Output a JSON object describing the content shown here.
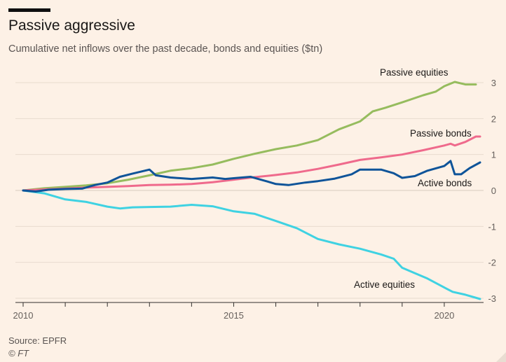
{
  "header": {
    "title": "Passive aggressive",
    "subtitle": "Cumulative net inflows over the past decade, bonds and equities ($tn)"
  },
  "footer": {
    "source": "Source: EPFR",
    "credit": "© FT"
  },
  "colors": {
    "background": "#fdf1e6",
    "grid": "#e8dbcf",
    "axis": "#33302e",
    "passive_equities": "#96bc5e",
    "passive_bonds": "#ef6a8c",
    "active_bonds": "#0f5499",
    "active_equities": "#3fd2e2"
  },
  "chart_data": {
    "type": "line",
    "title": "Passive aggressive",
    "subtitle": "Cumulative net inflows over the past decade, bonds and equities ($tn)",
    "xlabel": "",
    "ylabel": "",
    "xlim": [
      2010,
      2020.85
    ],
    "ylim": [
      -3,
      3
    ],
    "x_ticks": [
      "2010",
      "2015",
      "2020"
    ],
    "y_ticks": [
      "3",
      "2",
      "1",
      "0",
      "-1",
      "-2",
      "-3"
    ],
    "grid": true,
    "y_axis_side": "right",
    "legend": "direct labels",
    "series": [
      {
        "name": "Passive equities",
        "color_key": "passive_equities",
        "points": [
          [
            2010.0,
            0.0
          ],
          [
            2010.5,
            0.06
          ],
          [
            2011.0,
            0.1
          ],
          [
            2011.5,
            0.14
          ],
          [
            2012.0,
            0.2
          ],
          [
            2012.5,
            0.3
          ],
          [
            2013.0,
            0.42
          ],
          [
            2013.5,
            0.55
          ],
          [
            2014.0,
            0.62
          ],
          [
            2014.5,
            0.72
          ],
          [
            2015.0,
            0.88
          ],
          [
            2015.5,
            1.02
          ],
          [
            2016.0,
            1.15
          ],
          [
            2016.5,
            1.25
          ],
          [
            2017.0,
            1.4
          ],
          [
            2017.5,
            1.7
          ],
          [
            2018.0,
            1.92
          ],
          [
            2018.3,
            2.2
          ],
          [
            2018.6,
            2.3
          ],
          [
            2019.0,
            2.45
          ],
          [
            2019.5,
            2.65
          ],
          [
            2019.8,
            2.75
          ],
          [
            2020.0,
            2.9
          ],
          [
            2020.25,
            3.02
          ],
          [
            2020.5,
            2.95
          ],
          [
            2020.75,
            2.95
          ]
        ]
      },
      {
        "name": "Passive bonds",
        "color_key": "passive_bonds",
        "points": [
          [
            2010.0,
            0.0
          ],
          [
            2010.5,
            0.03
          ],
          [
            2011.0,
            0.05
          ],
          [
            2011.5,
            0.08
          ],
          [
            2012.0,
            0.1
          ],
          [
            2012.5,
            0.12
          ],
          [
            2013.0,
            0.15
          ],
          [
            2013.5,
            0.16
          ],
          [
            2014.0,
            0.18
          ],
          [
            2014.5,
            0.23
          ],
          [
            2015.0,
            0.3
          ],
          [
            2015.5,
            0.37
          ],
          [
            2016.0,
            0.43
          ],
          [
            2016.5,
            0.5
          ],
          [
            2017.0,
            0.6
          ],
          [
            2017.5,
            0.72
          ],
          [
            2018.0,
            0.85
          ],
          [
            2018.5,
            0.92
          ],
          [
            2019.0,
            1.0
          ],
          [
            2019.5,
            1.12
          ],
          [
            2020.0,
            1.25
          ],
          [
            2020.15,
            1.3
          ],
          [
            2020.25,
            1.25
          ],
          [
            2020.5,
            1.35
          ],
          [
            2020.75,
            1.5
          ],
          [
            2020.85,
            1.5
          ]
        ]
      },
      {
        "name": "Active bonds",
        "color_key": "active_bonds",
        "points": [
          [
            2010.0,
            0.0
          ],
          [
            2010.3,
            -0.03
          ],
          [
            2010.6,
            0.02
          ],
          [
            2011.0,
            0.04
          ],
          [
            2011.4,
            0.05
          ],
          [
            2011.7,
            0.15
          ],
          [
            2012.0,
            0.22
          ],
          [
            2012.3,
            0.38
          ],
          [
            2012.6,
            0.47
          ],
          [
            2013.0,
            0.58
          ],
          [
            2013.15,
            0.42
          ],
          [
            2013.5,
            0.36
          ],
          [
            2014.0,
            0.32
          ],
          [
            2014.5,
            0.36
          ],
          [
            2014.8,
            0.32
          ],
          [
            2015.0,
            0.34
          ],
          [
            2015.4,
            0.38
          ],
          [
            2015.8,
            0.25
          ],
          [
            2016.0,
            0.18
          ],
          [
            2016.3,
            0.15
          ],
          [
            2016.7,
            0.22
          ],
          [
            2017.0,
            0.26
          ],
          [
            2017.4,
            0.33
          ],
          [
            2017.8,
            0.45
          ],
          [
            2018.0,
            0.58
          ],
          [
            2018.5,
            0.58
          ],
          [
            2018.8,
            0.48
          ],
          [
            2019.0,
            0.35
          ],
          [
            2019.3,
            0.4
          ],
          [
            2019.6,
            0.55
          ],
          [
            2020.0,
            0.68
          ],
          [
            2020.15,
            0.82
          ],
          [
            2020.25,
            0.45
          ],
          [
            2020.4,
            0.45
          ],
          [
            2020.6,
            0.62
          ],
          [
            2020.85,
            0.78
          ]
        ]
      },
      {
        "name": "Active equities",
        "color_key": "active_equities",
        "points": [
          [
            2010.0,
            0.0
          ],
          [
            2010.5,
            -0.08
          ],
          [
            2011.0,
            -0.25
          ],
          [
            2011.5,
            -0.32
          ],
          [
            2012.0,
            -0.45
          ],
          [
            2012.3,
            -0.5
          ],
          [
            2012.6,
            -0.47
          ],
          [
            2013.0,
            -0.46
          ],
          [
            2013.5,
            -0.45
          ],
          [
            2014.0,
            -0.4
          ],
          [
            2014.5,
            -0.44
          ],
          [
            2015.0,
            -0.58
          ],
          [
            2015.5,
            -0.65
          ],
          [
            2016.0,
            -0.85
          ],
          [
            2016.5,
            -1.05
          ],
          [
            2017.0,
            -1.35
          ],
          [
            2017.5,
            -1.5
          ],
          [
            2018.0,
            -1.62
          ],
          [
            2018.5,
            -1.78
          ],
          [
            2018.8,
            -1.9
          ],
          [
            2019.0,
            -2.15
          ],
          [
            2019.3,
            -2.3
          ],
          [
            2019.6,
            -2.45
          ],
          [
            2020.0,
            -2.7
          ],
          [
            2020.2,
            -2.82
          ],
          [
            2020.5,
            -2.9
          ],
          [
            2020.85,
            -3.02
          ]
        ]
      }
    ]
  }
}
